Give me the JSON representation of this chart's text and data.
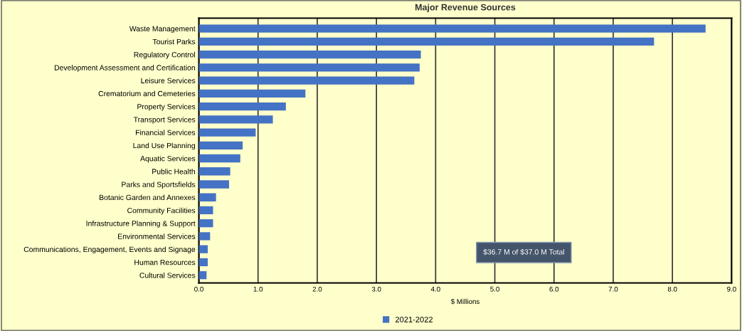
{
  "chart_data": {
    "type": "bar",
    "orientation": "horizontal",
    "title": "Major Revenue Sources",
    "xlabel": "$ Millions",
    "categories": [
      "Waste Management",
      "Tourist Parks",
      "Regulatory Control",
      "Development Assessment and Certification",
      "Leisure Services",
      "Crematorium and Cemeteries",
      "Property Services",
      "Transport Services",
      "Financial Services",
      "Land Use Planning",
      "Aquatic Services",
      "Public Health",
      "Parks and Sportsfields",
      "Botanic Garden and Annexes",
      "Community Facilities",
      "Infrastructure Planning & Support",
      "Environmental Services",
      "Communications, Engagement, Events and Signage",
      "Human Resources",
      "Cultural Services"
    ],
    "series": [
      {
        "name": "2021-2022",
        "color": "#4472c4",
        "values": [
          8.56,
          7.69,
          3.75,
          3.73,
          3.64,
          1.8,
          1.47,
          1.25,
          0.96,
          0.74,
          0.7,
          0.53,
          0.51,
          0.29,
          0.24,
          0.24,
          0.19,
          0.15,
          0.15,
          0.13
        ]
      }
    ],
    "xlim": [
      0,
      9
    ],
    "xticks": [
      {
        "value": 0,
        "label": "0.0"
      },
      {
        "value": 1,
        "label": "1.0"
      },
      {
        "value": 2,
        "label": "2.0"
      },
      {
        "value": 3,
        "label": "3.0"
      },
      {
        "value": 4,
        "label": "4.0"
      },
      {
        "value": 5,
        "label": "5.0"
      },
      {
        "value": 6,
        "label": "6.0"
      },
      {
        "value": 7,
        "label": "7.0"
      },
      {
        "value": 8,
        "label": "8.0"
      },
      {
        "value": 9,
        "label": "9.0"
      }
    ],
    "grid": "x",
    "legend": "bottom",
    "annotations": [
      "$36.7 M of $37.0 M Total"
    ]
  }
}
